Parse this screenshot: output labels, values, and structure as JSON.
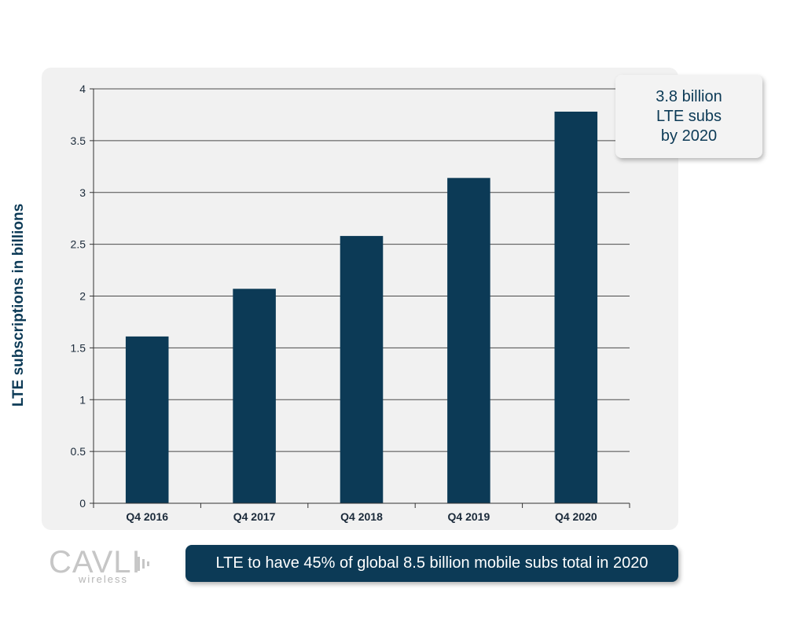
{
  "chart_data": {
    "type": "bar",
    "categories": [
      "Q4 2016",
      "Q4 2017",
      "Q4 2018",
      "Q4 2019",
      "Q4 2020"
    ],
    "values": [
      1.61,
      2.07,
      2.58,
      3.14,
      3.78
    ],
    "title": "",
    "xlabel": "",
    "ylabel": "LTE subscriptions in billions",
    "ylim": [
      0,
      4
    ],
    "yticks": [
      0,
      0.5,
      1,
      1.5,
      2,
      2.5,
      3,
      3.5,
      4
    ],
    "ytick_labels": [
      "0",
      "0.5",
      "1",
      "1.5",
      "2",
      "2.5",
      "3",
      "3.5",
      "4"
    ],
    "grid": true,
    "bar_color": "#0c3a56"
  },
  "callout": {
    "lines": [
      "3.8 billion",
      "LTE subs",
      "by 2020"
    ]
  },
  "footer": {
    "text": "LTE to have 45% of global 8.5 billion mobile subs total in 2020"
  },
  "logo": {
    "name": "CAVLI",
    "subtitle": "wireless",
    "icon": "signal-bars-icon"
  },
  "colors": {
    "accent": "#0c3a56",
    "panel": "#f1f1f1",
    "logo": "#c6c6c6"
  }
}
